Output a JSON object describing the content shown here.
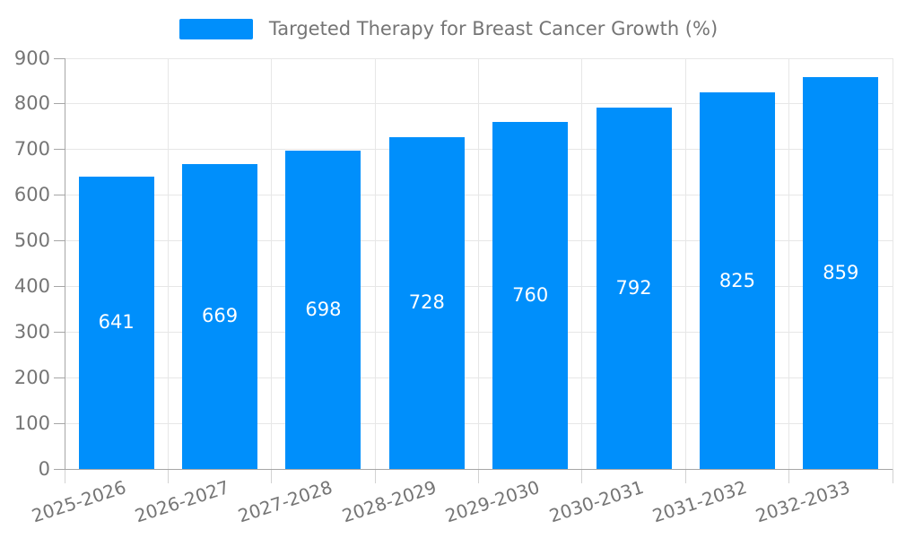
{
  "chart_data": {
    "type": "bar",
    "title": "Targeted Therapy for Breast Cancer Growth (%)",
    "categories": [
      "2025-2026",
      "2026-2027",
      "2027-2028",
      "2028-2029",
      "2029-2030",
      "2030-2031",
      "2031-2032",
      "2032-2033"
    ],
    "values": [
      641,
      669,
      698,
      728,
      760,
      792,
      825,
      859
    ],
    "xlabel": "",
    "ylabel": "",
    "ylim": [
      0,
      900
    ],
    "ytick_step": 100,
    "ytick_labels": [
      "0",
      "100",
      "200",
      "300",
      "400",
      "500",
      "600",
      "700",
      "800",
      "900"
    ],
    "grid": true,
    "legend_position": "top"
  },
  "colors": {
    "bar": "#008FFB",
    "value_label": "#ffffff",
    "axis_text": "#757575",
    "gridline": "#e7e7e7",
    "axis_line": "#a6a6a6",
    "x_tick": "#d2d2d2",
    "background": "#ffffff"
  }
}
